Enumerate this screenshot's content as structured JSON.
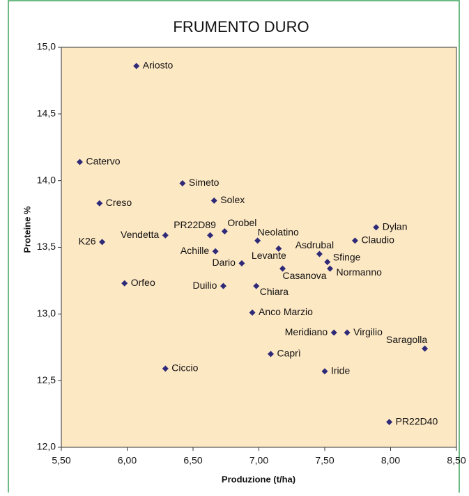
{
  "chart_data": {
    "type": "scatter",
    "title": "FRUMENTO DURO",
    "xlabel": "Produzione (t/ha)",
    "ylabel": "Proteine %",
    "color": "#2e2a78",
    "background": "#fde8c4",
    "labels": [
      "Ariosto",
      "Catervo",
      "Simeto",
      "Creso",
      "Solex",
      "K26",
      "Vendetta",
      "PR22D89",
      "Orobel",
      "Neolatino",
      "Achille",
      "Dario",
      "Levante",
      "Asdrubal",
      "Sfinge",
      "Normanno",
      "Casanova",
      "Dylan",
      "Claudio",
      "Chiara",
      "Duilio",
      "Orfeo",
      "Anco Marzio",
      "Meridiano",
      "Virgilio",
      "Saragolla",
      "Caprì",
      "Iride",
      "Ciccio",
      "PR22D40"
    ],
    "x": [
      6.07,
      5.64,
      6.42,
      5.79,
      6.66,
      5.81,
      6.29,
      6.63,
      6.74,
      6.99,
      6.67,
      6.87,
      7.15,
      7.46,
      7.52,
      7.54,
      7.18,
      7.89,
      7.73,
      6.98,
      6.73,
      5.98,
      6.95,
      7.57,
      7.67,
      8.26,
      7.09,
      7.5,
      6.29,
      7.99
    ],
    "values": [
      14.86,
      14.14,
      13.98,
      13.83,
      13.85,
      13.54,
      13.59,
      13.59,
      13.62,
      13.55,
      13.47,
      13.38,
      13.49,
      13.45,
      13.39,
      13.34,
      13.34,
      13.65,
      13.55,
      13.21,
      13.21,
      13.23,
      13.01,
      12.86,
      12.86,
      12.74,
      12.7,
      12.57,
      12.59,
      12.19
    ],
    "xlim": [
      5.5,
      8.5
    ],
    "xticks": [
      {
        "value": 5.5,
        "label": "5,50"
      },
      {
        "value": 6,
        "label": "6,00"
      },
      {
        "value": 6.5,
        "label": "6,50"
      },
      {
        "value": 7,
        "label": "7,00"
      },
      {
        "value": 7.5,
        "label": "7,50"
      },
      {
        "value": 8,
        "label": "8,00"
      },
      {
        "value": 8.5,
        "label": "8,50"
      }
    ],
    "ylim": [
      12,
      15
    ],
    "yticks": [
      {
        "value": 12,
        "label": "12,0"
      },
      {
        "value": 12.5,
        "label": "12,5"
      },
      {
        "value": 13,
        "label": "13,0"
      },
      {
        "value": 13.5,
        "label": "13,5"
      },
      {
        "value": 14,
        "label": "14,0"
      },
      {
        "value": 14.5,
        "label": "14,5"
      },
      {
        "value": 15,
        "label": "15,0"
      }
    ]
  }
}
